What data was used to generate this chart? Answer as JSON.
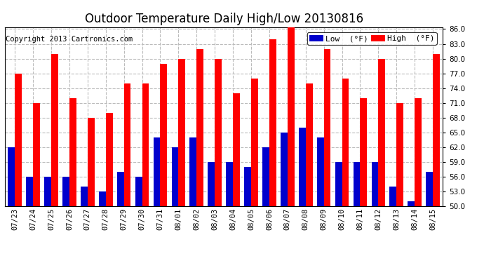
{
  "title": "Outdoor Temperature Daily High/Low 20130816",
  "copyright": "Copyright 2013 Cartronics.com",
  "legend_low": "Low  (°F)",
  "legend_high": "High  (°F)",
  "dates": [
    "07/23",
    "07/24",
    "07/25",
    "07/26",
    "07/27",
    "07/28",
    "07/29",
    "07/30",
    "07/31",
    "08/01",
    "08/02",
    "08/03",
    "08/04",
    "08/05",
    "08/06",
    "08/07",
    "08/08",
    "08/09",
    "08/10",
    "08/11",
    "08/12",
    "08/13",
    "08/14",
    "08/15"
  ],
  "low": [
    62,
    56,
    56,
    56,
    54,
    53,
    57,
    56,
    64,
    62,
    64,
    59,
    59,
    58,
    62,
    65,
    66,
    64,
    59,
    59,
    59,
    54,
    51,
    57
  ],
  "high": [
    77,
    71,
    81,
    72,
    68,
    69,
    75,
    75,
    79,
    80,
    82,
    80,
    73,
    76,
    84,
    87,
    75,
    82,
    76,
    72,
    80,
    71,
    72,
    81
  ],
  "ylim_low": 50,
  "ylim_high": 86,
  "yticks": [
    50.0,
    53.0,
    56.0,
    59.0,
    62.0,
    65.0,
    68.0,
    71.0,
    74.0,
    77.0,
    80.0,
    83.0,
    86.0
  ],
  "bar_width": 0.38,
  "low_color": "#0000CC",
  "high_color": "#FF0000",
  "bg_color": "#FFFFFF",
  "grid_color": "#BBBBBB",
  "title_fontsize": 12,
  "copyright_fontsize": 7.5,
  "tick_fontsize": 7.5,
  "legend_fontsize": 8
}
